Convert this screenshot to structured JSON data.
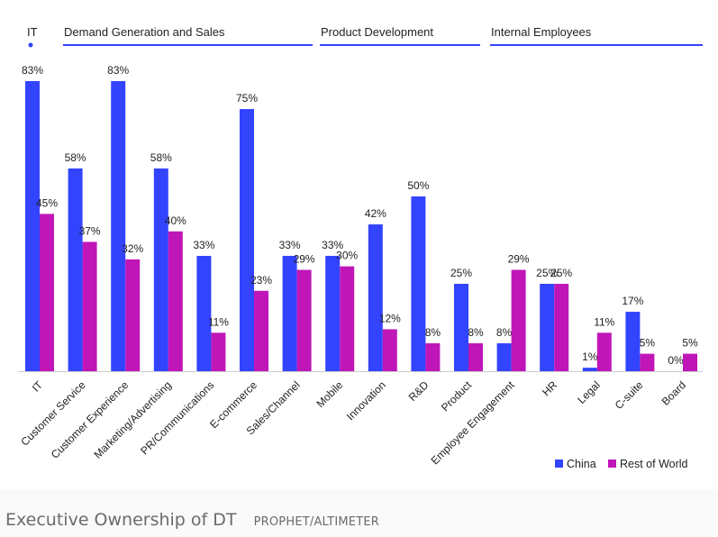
{
  "caption": {
    "title": "Executive Ownership of DT",
    "source": "PROPHET/ALTIMETER"
  },
  "colors": {
    "china": "#3344ff",
    "rest_of_world": "#c016b8",
    "group_line": "#3344ff",
    "axis": "#cccccc"
  },
  "chart_data": {
    "type": "bar",
    "title": "Executive Ownership of DT",
    "xlabel": "",
    "ylabel": "",
    "ylim": [
      0,
      83
    ],
    "grid": false,
    "legend": {
      "position": "bottom-right",
      "entries": [
        "China",
        "Rest of World"
      ]
    },
    "groups": [
      {
        "label": "IT",
        "categories": [
          "IT"
        ]
      },
      {
        "label": "Demand Generation and Sales",
        "categories": [
          "Customer Service",
          "Customer Experience",
          "Marketing/Advertising",
          "PR/Communications",
          "E-commerce",
          "Sales/Channel"
        ]
      },
      {
        "label": "Product Development",
        "categories": [
          "Mobile",
          "Innovation",
          "R&D",
          "Product"
        ]
      },
      {
        "label": "Internal Employees",
        "categories": [
          "Employee Engagement",
          "HR",
          "Legal",
          "C-suite",
          "Board"
        ]
      }
    ],
    "categories": [
      "IT",
      "Customer Service",
      "Customer Experience",
      "Marketing/Advertising",
      "PR/Communications",
      "E-commerce",
      "Sales/Channel",
      "Mobile",
      "Innovation",
      "R&D",
      "Product",
      "Employee Engagement",
      "HR",
      "Legal",
      "C-suite",
      "Board"
    ],
    "series": [
      {
        "name": "China",
        "values": [
          83,
          58,
          83,
          58,
          33,
          75,
          33,
          33,
          42,
          50,
          25,
          8,
          25,
          1,
          17,
          0
        ]
      },
      {
        "name": "Rest of World",
        "values": [
          45,
          37,
          32,
          40,
          11,
          23,
          29,
          30,
          12,
          8,
          8,
          29,
          25,
          11,
          5,
          5
        ]
      }
    ],
    "value_suffix": "%"
  }
}
